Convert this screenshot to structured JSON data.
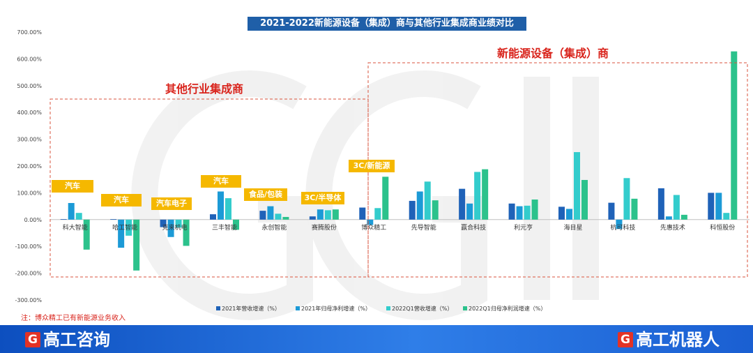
{
  "title": "2021-2022新能源设备（集成）商与其他行业集成商业绩对比",
  "group_labels": {
    "left": "其他行业集成商",
    "right": "新能源设备（集成）商"
  },
  "tags": [
    "汽车",
    "汽车",
    "汽车电子",
    "汽车",
    "食品/包装",
    "3C/半导体",
    "3C/新能源"
  ],
  "note": "注：博众精工已有新能源业务收入",
  "footer": {
    "left_brand": "高工咨询",
    "right_brand": "高工机器人",
    "logo_letter": "G"
  },
  "colors": {
    "s1": "#1f62b8",
    "s2": "#1c9ad6",
    "s3": "#33cccc",
    "s4": "#2cc28c",
    "title_bg": "#1f5fa8",
    "tag": "#f5b800",
    "accent": "#d9241c"
  },
  "chart_data": {
    "type": "bar",
    "categories": [
      "科大智能",
      "哈工智能",
      "克来机电",
      "三丰智能",
      "永创智能",
      "赛腾股份",
      "博众精工",
      "先导智能",
      "赢合科技",
      "利元亨",
      "海目星",
      "杭可科技",
      "先惠技术",
      "科恒股份"
    ],
    "series": [
      {
        "name": "2021年营收增速（%）",
        "values": [
          2,
          2,
          -28,
          20,
          33,
          12,
          45,
          70,
          115,
          60,
          48,
          63,
          117,
          100
        ]
      },
      {
        "name": "2021年归母净利增速（%）",
        "values": [
          62,
          -105,
          -65,
          105,
          50,
          38,
          -20,
          105,
          60,
          50,
          40,
          -35,
          12,
          100
        ]
      },
      {
        "name": "2022Q1营收增速（%）",
        "values": [
          25,
          -60,
          -30,
          80,
          22,
          35,
          43,
          142,
          178,
          52,
          252,
          155,
          92,
          25
        ]
      },
      {
        "name": "2022Q1归母净利润增速（%）",
        "values": [
          -112,
          -190,
          -98,
          -38,
          10,
          38,
          160,
          72,
          188,
          75,
          148,
          78,
          18,
          628
        ]
      }
    ],
    "ylim": [
      -300,
      700
    ],
    "yticks": [
      "-300.00%",
      "-200.00%",
      "-100.00%",
      "0.00%",
      "100.00%",
      "200.00%",
      "300.00%",
      "400.00%",
      "500.00%",
      "600.00%",
      "700.00%"
    ],
    "legend_position": "bottom"
  }
}
